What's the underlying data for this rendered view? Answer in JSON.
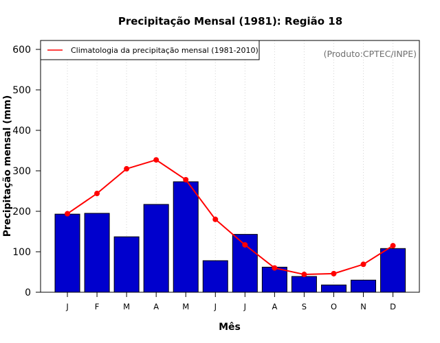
{
  "chart_data": {
    "type": "bar",
    "title": "Precipitação Mensal (1981): Região 18",
    "xlabel": "Mês",
    "ylabel": "Precipitação mensal (mm)",
    "ylim": [
      0,
      600
    ],
    "yticks": [
      "0",
      "100",
      "200",
      "300",
      "400",
      "500",
      "600"
    ],
    "categories": [
      "J",
      "F",
      "M",
      "A",
      "M",
      "J",
      "J",
      "A",
      "S",
      "O",
      "N",
      "D"
    ],
    "series": [
      {
        "name": "Precipitação mensal 1981",
        "kind": "bar",
        "color": "#0000cd",
        "values": [
          193,
          195,
          137,
          217,
          273,
          78,
          143,
          62,
          39,
          18,
          30,
          108
        ]
      },
      {
        "name": "Climatologia da precipitação mensal (1981-2010)",
        "kind": "line",
        "color": "#ff0000",
        "values": [
          194,
          244,
          305,
          327,
          278,
          180,
          117,
          60,
          44,
          46,
          69,
          115
        ]
      }
    ],
    "legend": {
      "position": "top-left",
      "label": "Climatologia da precipitação mensal (1981-2010)"
    },
    "annotation": "(Produto:CPTEC/INPE)",
    "grid": "vertical dotted"
  }
}
